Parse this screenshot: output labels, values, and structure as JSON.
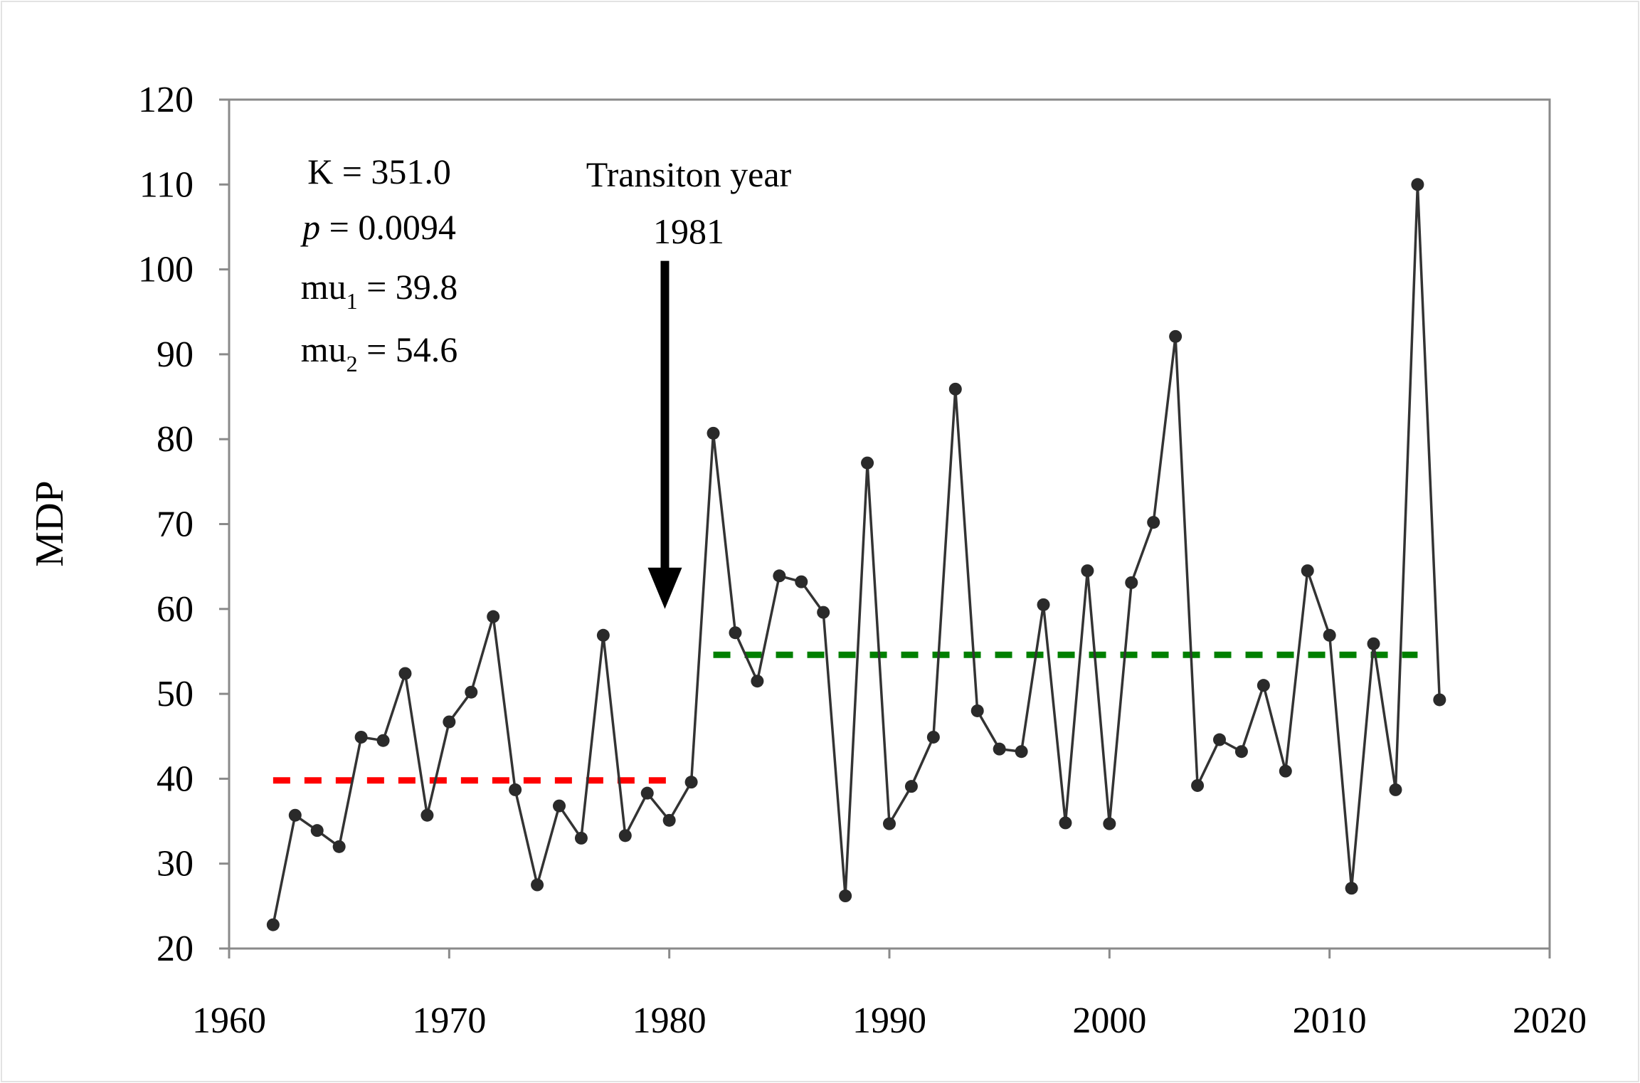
{
  "chart_data": {
    "type": "line",
    "xlabel": "",
    "ylabel": "MDP",
    "xlim": [
      1960,
      2020
    ],
    "ylim": [
      20,
      120
    ],
    "x_ticks": [
      "1960",
      "1970",
      "1980",
      "1990",
      "2000",
      "2010",
      "2020"
    ],
    "y_ticks": [
      "20",
      "30",
      "40",
      "50",
      "60",
      "70",
      "80",
      "90",
      "100",
      "110",
      "120"
    ],
    "grid": false,
    "series": [
      {
        "name": "MDP",
        "color": "#333333",
        "x": [
          1962,
          1963,
          1964,
          1965,
          1966,
          1967,
          1968,
          1969,
          1970,
          1971,
          1972,
          1973,
          1974,
          1975,
          1976,
          1977,
          1978,
          1979,
          1980,
          1981,
          1982,
          1983,
          1984,
          1985,
          1986,
          1987,
          1988,
          1989,
          1990,
          1991,
          1992,
          1993,
          1994,
          1995,
          1996,
          1997,
          1998,
          1999,
          2000,
          2001,
          2002,
          2003,
          2004,
          2005,
          2006,
          2007,
          2008,
          2009,
          2010,
          2011,
          2012,
          2013,
          2014,
          2015
        ],
        "y": [
          22.8,
          35.7,
          33.9,
          32.0,
          44.9,
          44.5,
          52.4,
          35.7,
          46.7,
          50.2,
          59.1,
          38.7,
          27.5,
          36.8,
          33.0,
          56.9,
          33.3,
          38.3,
          35.1,
          39.6,
          80.7,
          57.2,
          51.5,
          63.9,
          63.2,
          59.6,
          26.2,
          77.2,
          34.7,
          39.1,
          44.9,
          85.9,
          48.0,
          43.5,
          43.2,
          60.5,
          34.8,
          64.5,
          34.7,
          63.1,
          70.2,
          92.1,
          39.2,
          44.6,
          43.2,
          51.0,
          40.9,
          64.5,
          56.9,
          27.1,
          55.9,
          38.7,
          110.0,
          49.3
        ]
      },
      {
        "name": "mu1",
        "color": "#ff0000",
        "style": "dashed",
        "x": [
          1962,
          1980
        ],
        "y": [
          39.8,
          39.8
        ]
      },
      {
        "name": "mu2",
        "color": "#008000",
        "style": "dashed",
        "x": [
          1982,
          2014
        ],
        "y": [
          54.6,
          54.6
        ]
      }
    ],
    "annotations": {
      "stats": {
        "k": "K = 351.0",
        "p_symbol": "p",
        "p_value": " = 0.0094",
        "mu1_prefix": "mu",
        "mu1_sub": "1",
        "mu1_value": " = 39.8",
        "mu2_prefix": "mu",
        "mu2_sub": "2",
        "mu2_value": " = 54.6"
      },
      "transition": {
        "label": "Transiton year",
        "year": "1981",
        "arrow_x": 1979.8,
        "arrow_y_top": 101,
        "arrow_y_bottom": 60
      }
    }
  }
}
